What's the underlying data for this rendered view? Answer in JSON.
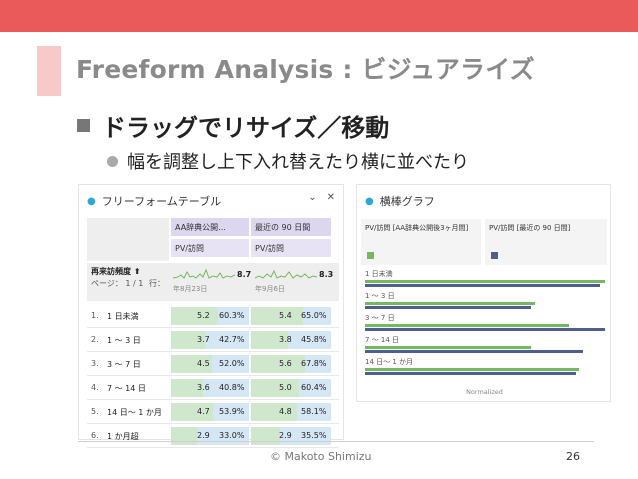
{
  "slide": {
    "title": "Freeform Analysis : ビジュアライズ",
    "bullet1": "ドラッグでリサイズ／移動",
    "bullet2": "幅を調整し上下入れ替えたり横に並べたり",
    "copyright": "© Makoto Shimizu",
    "page": "26",
    "colors": {
      "topbar": "#ea5a5a",
      "accent": "#f7c9c9",
      "bar_green": "#76b860",
      "bar_navy": "#4f5e8c"
    }
  },
  "table_panel": {
    "title": "フリーフォームテーブル",
    "icons": [
      "chevron-down-icon",
      "close-icon"
    ],
    "col1_segment": "AA辞典公開...",
    "col2_segment": "最近の 90 日間",
    "metric1": "PV/訪問",
    "metric2": "PV/訪問",
    "dim_label": "再来訪頻度 ⬆",
    "paging": "ページ： 1 / 1",
    "rows_label": "行：",
    "total1": "8.7",
    "total2": "8.3",
    "date1": "年8月23日",
    "date2": "年9月6日",
    "rows": [
      {
        "num": "1.",
        "name": "1 日未満",
        "v1": "5.2",
        "p1": "60.3%",
        "v2": "5.4",
        "p2": "65.0%",
        "f1": 0.6,
        "f2": 0.65
      },
      {
        "num": "2.",
        "name": "1 〜 3 日",
        "v1": "3.7",
        "p1": "42.7%",
        "v2": "3.8",
        "p2": "45.8%",
        "f1": 0.43,
        "f2": 0.46
      },
      {
        "num": "3.",
        "name": "3 〜 7 日",
        "v1": "4.5",
        "p1": "52.0%",
        "v2": "5.6",
        "p2": "67.8%",
        "f1": 0.52,
        "f2": 0.68
      },
      {
        "num": "4.",
        "name": "7 〜 14 日",
        "v1": "3.6",
        "p1": "40.8%",
        "v2": "5.0",
        "p2": "60.4%",
        "f1": 0.41,
        "f2": 0.6
      },
      {
        "num": "5.",
        "name": "14 日〜 1 か月",
        "v1": "4.7",
        "p1": "53.9%",
        "v2": "4.8",
        "p2": "58.1%",
        "f1": 0.54,
        "f2": 0.58
      },
      {
        "num": "6.",
        "name": "1 か月超",
        "v1": "2.9",
        "p1": "33.0%",
        "v2": "2.9",
        "p2": "35.5%",
        "f1": 0.33,
        "f2": 0.36
      }
    ]
  },
  "chart_panel": {
    "title": "横棒グラフ",
    "footer": "Normalized"
  },
  "chart_data": {
    "type": "bar",
    "orientation": "horizontal",
    "categories": [
      "1 日未満",
      "1 〜 3 日",
      "3 〜 7 日",
      "7 〜 14 日",
      "14 日〜 1 か月"
    ],
    "series": [
      {
        "name": "PV/訪問 [AA辞典公開後3ヶ月間]",
        "values": [
          1.0,
          0.71,
          0.85,
          0.69,
          0.89
        ]
      },
      {
        "name": "PV/訪問 [最近の 90 日間]",
        "values": [
          0.98,
          0.69,
          1.0,
          0.91,
          0.88
        ]
      }
    ],
    "xlabel": "Normalized",
    "xlim": [
      0,
      1
    ]
  }
}
